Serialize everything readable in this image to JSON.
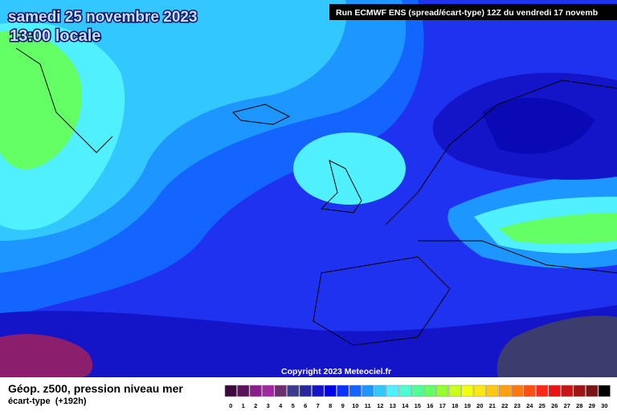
{
  "header": {
    "date": "samedi 25 novembre 2023",
    "time": "13:00 locale",
    "run": "Run ECMWF ENS (spread/écart-type) 12Z du vendredi 17 novemb"
  },
  "copyright": "Copyright 2023 Meteociel.fr",
  "footer": {
    "title": "Géop. z500, pression niveau mer",
    "subtitle": "écart-type  (+192h)"
  },
  "scale": {
    "labels": [
      0,
      1,
      2,
      3,
      4,
      5,
      6,
      7,
      8,
      9,
      10,
      11,
      12,
      13,
      14,
      15,
      16,
      17,
      18,
      19,
      20,
      21,
      22,
      23,
      24,
      25,
      26,
      27,
      28,
      29,
      30
    ],
    "colors": [
      "#3c0a3c",
      "#5a145a",
      "#8c1e8c",
      "#a028a0",
      "#6e2d6e",
      "#3c3c8c",
      "#2828a0",
      "#1414c8",
      "#0000e6",
      "#0a32ff",
      "#1464ff",
      "#1e96ff",
      "#32c8ff",
      "#50f0ff",
      "#50ffd2",
      "#50ff96",
      "#64ff64",
      "#96ff32",
      "#c8ff1e",
      "#f0ff14",
      "#ffe614",
      "#ffc814",
      "#ffa014",
      "#ff7814",
      "#ff5014",
      "#ff2814",
      "#e61414",
      "#c81414",
      "#a01414",
      "#781414",
      "#000000"
    ]
  }
}
